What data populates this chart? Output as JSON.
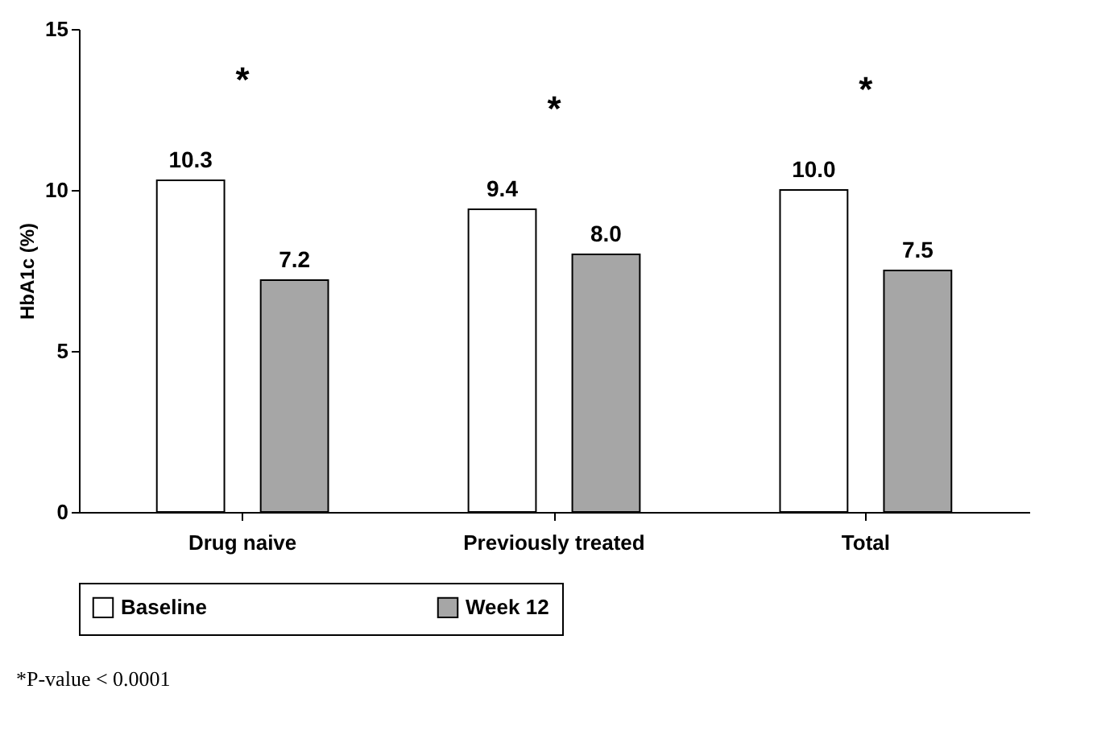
{
  "chart_data": {
    "type": "bar",
    "ylabel": "HbA1c (%)",
    "categories": [
      "Drug naive",
      "Previously treated",
      "Total"
    ],
    "series": [
      {
        "name": "Baseline",
        "color": "#ffffff",
        "values": [
          10.3,
          9.4,
          10.0
        ],
        "value_labels": [
          "10.3",
          "9.4",
          "10.0"
        ]
      },
      {
        "name": "Week 12",
        "color": "#a6a6a6",
        "values": [
          7.2,
          8.0,
          7.5
        ],
        "value_labels": [
          "7.2",
          "8.0",
          "7.5"
        ]
      }
    ],
    "ylim": [
      0,
      15
    ],
    "yticks": [
      0,
      5,
      10,
      15
    ],
    "grid": false,
    "legend": "bottom",
    "annotations": [
      "*",
      "*",
      "*",
      "*P-value < 0.0001"
    ]
  }
}
